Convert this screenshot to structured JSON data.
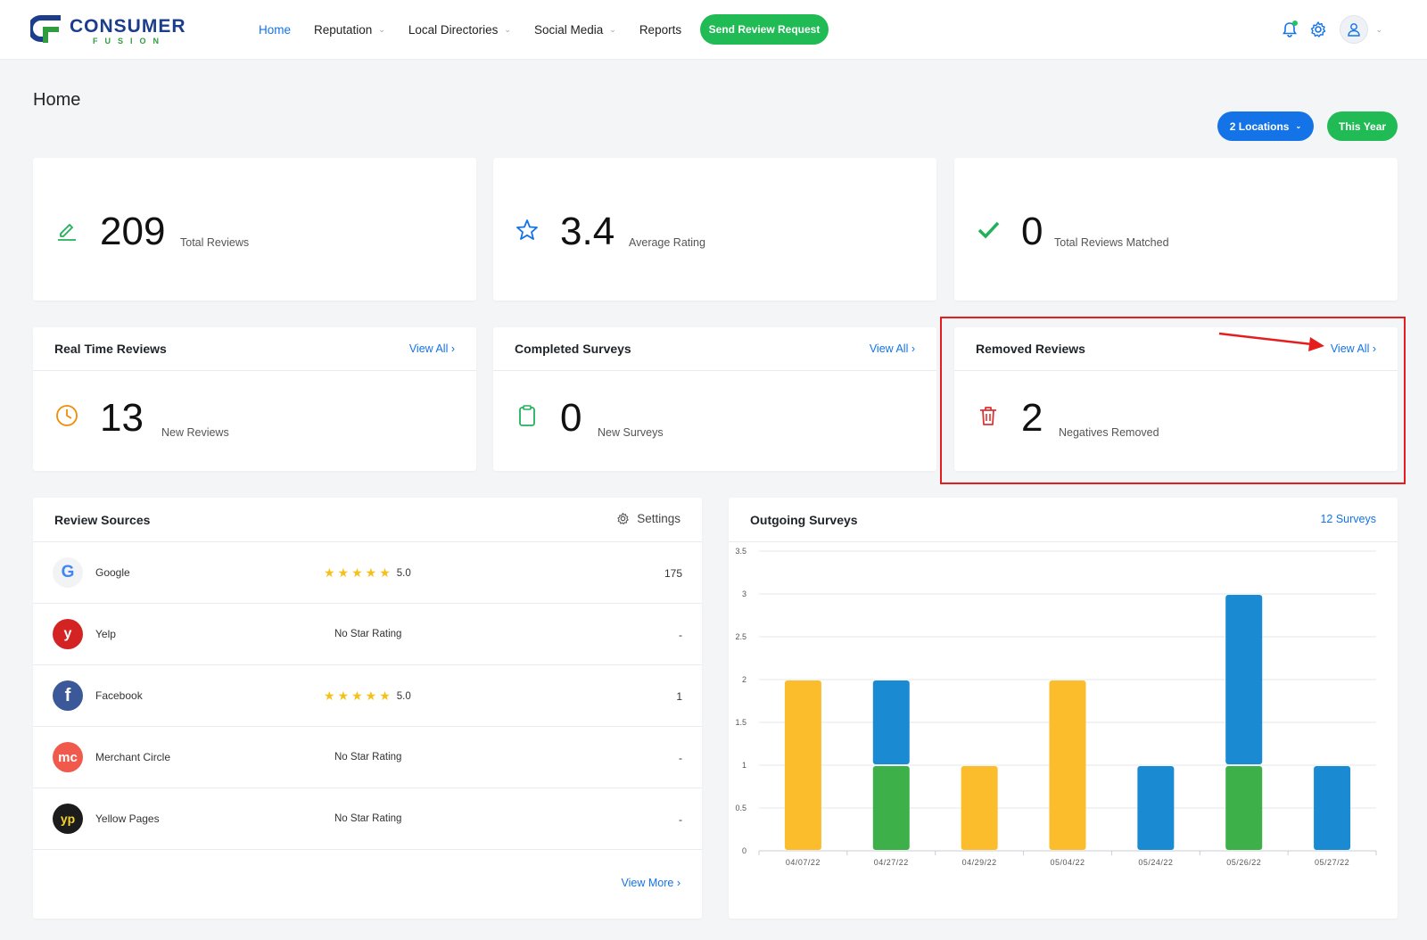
{
  "brand": {
    "name": "CONSUMER",
    "sub": "FUSION",
    "blue": "#1c3d8c",
    "green": "#2e9c3f"
  },
  "nav": {
    "items": [
      {
        "label": "Home",
        "active": true,
        "dropdown": false
      },
      {
        "label": "Reputation",
        "dropdown": true
      },
      {
        "label": "Local Directories",
        "dropdown": true
      },
      {
        "label": "Social Media",
        "dropdown": true
      },
      {
        "label": "Reports",
        "dropdown": false
      }
    ],
    "send_button": "Send Review Request",
    "icons": [
      "bell-icon",
      "gear-icon",
      "user-icon"
    ]
  },
  "page": {
    "title": "Home",
    "locations_button": "2 Locations",
    "period_button": "This Year"
  },
  "stats": [
    {
      "value": "209",
      "label": "Total Reviews",
      "icon": "pencil-icon",
      "color": "#22b05a"
    },
    {
      "value": "3.4",
      "label": "Average Rating",
      "icon": "star-icon",
      "color": "#1473e6"
    },
    {
      "value": "0",
      "label": "Total Reviews Matched",
      "icon": "check-icon",
      "color": "#22b05a"
    }
  ],
  "panels": [
    {
      "title": "Real Time Reviews",
      "link": "View All",
      "value": "13",
      "label": "New Reviews",
      "icon": "clock-icon",
      "color": "#f08c00"
    },
    {
      "title": "Completed Surveys",
      "link": "View All",
      "value": "0",
      "label": "New Surveys",
      "icon": "clipboard-icon",
      "color": "#22b05a"
    },
    {
      "title": "Removed Reviews",
      "link": "View All",
      "value": "2",
      "label": "Negatives Removed",
      "icon": "trash-icon",
      "color": "#e03131"
    }
  ],
  "sources": {
    "title": "Review Sources",
    "settings": "Settings",
    "view_more": "View More",
    "rows": [
      {
        "name": "Google",
        "rating": "5.0",
        "stars": "★★★★★",
        "count": "175",
        "logo": "G"
      },
      {
        "name": "Yelp",
        "rating": "No Star Rating",
        "count": "-",
        "logo": "y"
      },
      {
        "name": "Facebook",
        "rating": "5.0",
        "stars": "★★★★★",
        "count": "1",
        "logo": "f"
      },
      {
        "name": "Merchant Circle",
        "rating": "No Star Rating",
        "count": "-",
        "logo": "mc"
      },
      {
        "name": "Yellow Pages",
        "rating": "No Star Rating",
        "count": "-",
        "logo": "yp"
      }
    ]
  },
  "surveys": {
    "title": "Outgoing Surveys",
    "count_link": "12 Surveys"
  },
  "chart_data": {
    "type": "bar",
    "stacked": true,
    "categories": [
      "04/07/22",
      "04/27/22",
      "04/29/22",
      "05/04/22",
      "05/24/22",
      "05/26/22",
      "05/27/22"
    ],
    "series": [
      {
        "color": "#fbbd2c",
        "values": [
          2,
          0,
          1,
          2,
          0,
          0,
          0
        ]
      },
      {
        "color": "#3db049",
        "values": [
          0,
          1,
          0,
          0,
          0,
          1,
          0
        ]
      },
      {
        "color": "#1a8bd2",
        "values": [
          0,
          1,
          0,
          0,
          1,
          2,
          1
        ]
      }
    ],
    "ylim": [
      0,
      3.5
    ],
    "yticks": [
      "0",
      "0.5",
      "1",
      "1.5",
      "2",
      "2.5",
      "3",
      "3.5"
    ],
    "grid": true,
    "title": "",
    "xlabel": "",
    "ylabel": ""
  }
}
